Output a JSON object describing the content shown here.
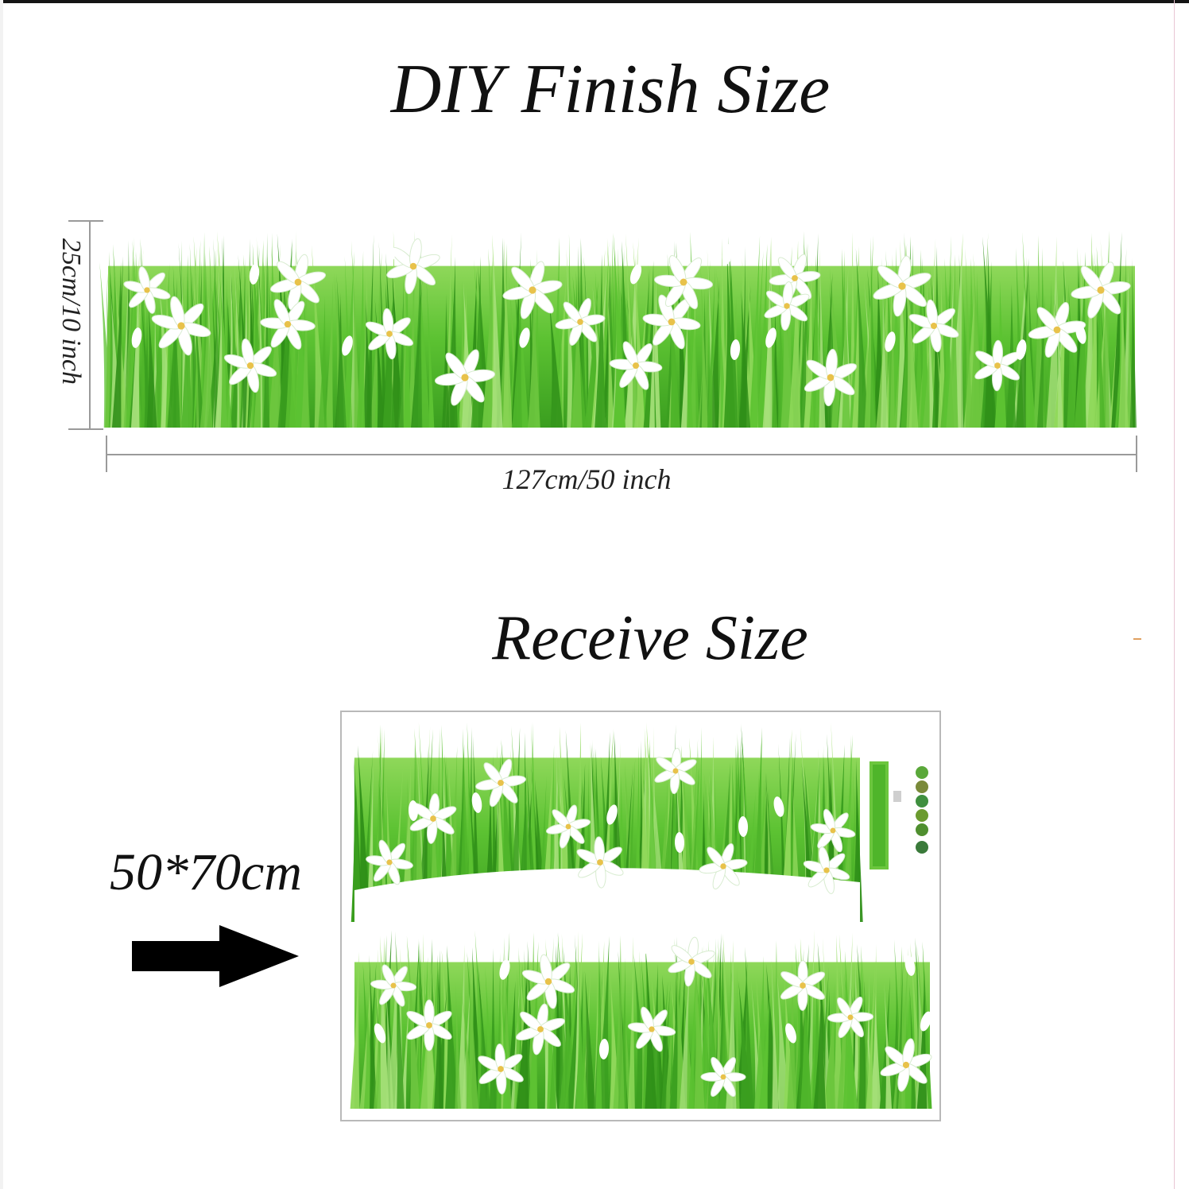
{
  "titles": {
    "finish": "DIY Finish Size",
    "receive": "Receive Size"
  },
  "dimensions": {
    "width": "127cm/50 inch",
    "height": "25cm/10 inch"
  },
  "sheet_size": "50*70cm",
  "colors": {
    "grass_dark": "#3ea322",
    "grass_mid": "#5ec534",
    "grass_light": "#9bdc6a",
    "flower": "#ffffff"
  },
  "icons": [
    "arrow-right-icon",
    "grass-border-sticker",
    "white-flower-icon"
  ]
}
